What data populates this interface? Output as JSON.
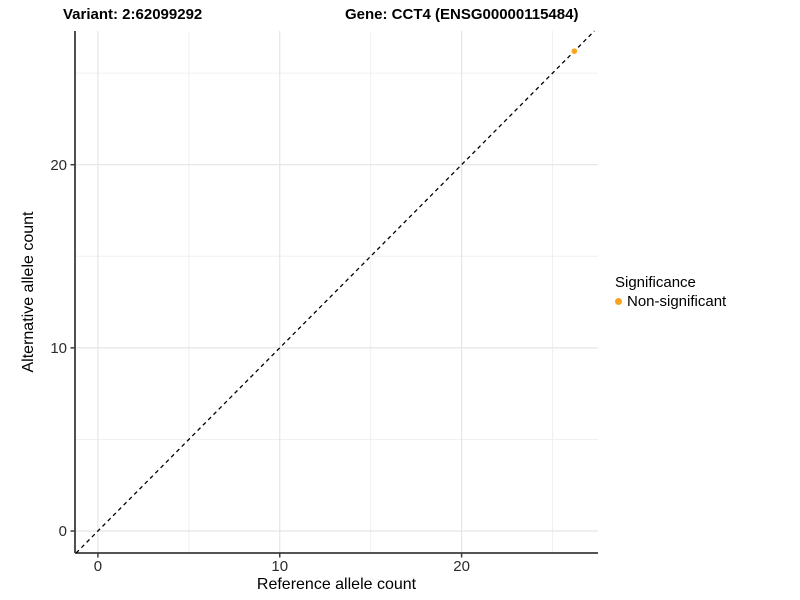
{
  "header": {
    "title_left": "Variant: 2:62099292",
    "title_right": "Gene: CCT4 (ENSG00000115484)"
  },
  "chart_data": {
    "type": "scatter",
    "xlabel": "Reference allele count",
    "ylabel": "Alternative allele count",
    "xlim": [
      -1.26,
      27.5
    ],
    "ylim": [
      -1.2,
      27.3
    ],
    "x_ticks": {
      "major": [
        0,
        10,
        20
      ],
      "minor": [
        5,
        15,
        25
      ]
    },
    "y_ticks": {
      "major": [
        0,
        10,
        20
      ],
      "minor": [
        5,
        15,
        25
      ]
    },
    "grid": true,
    "points": [
      {
        "x": 26.2,
        "y": 26.2,
        "series": "Non-significant"
      }
    ],
    "identity_line": {
      "slope": 1,
      "intercept": 0,
      "linetype": "dashed",
      "color": "#000000"
    },
    "legend": {
      "title": "Significance",
      "position": "right",
      "items": [
        {
          "label": "Non-significant",
          "color": "#FAA21D"
        }
      ]
    },
    "style": {
      "grid_major_color": "#e5e5e5",
      "grid_minor_color": "#f0f0f0",
      "axis_line_color": "#3c3c3c",
      "tick_color": "#3c3c3c",
      "tick_label_color": "#2b2b2b",
      "point_radius": 2.8
    }
  }
}
